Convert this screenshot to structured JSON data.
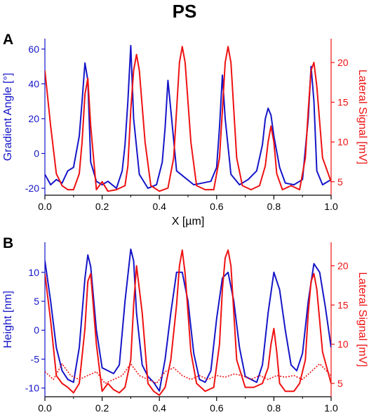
{
  "figure_title": "PS",
  "colors": {
    "blue": "#1515c8",
    "red": "#ee1111",
    "axis": "#000000"
  },
  "chart_data": [
    {
      "panel": "A",
      "type": "line",
      "xlabel": "X [µm]",
      "ylabel_left": "Gradient Angle [°]",
      "ylabel_right": "Lateral Signal [mV]",
      "xlim": [
        0,
        1
      ],
      "ylim_left": [
        -24,
        66
      ],
      "ylim_right": [
        3.3,
        23.0
      ],
      "x_ticks": [
        "0.0",
        "0.2",
        "0.4",
        "0.6",
        "0.8",
        "1.0"
      ],
      "y_ticks_left": [
        "-20",
        "0",
        "20",
        "40",
        "60"
      ],
      "y_ticks_right": [
        "5",
        "10",
        "15",
        "20"
      ],
      "grid": false,
      "series": [
        {
          "axis": "left",
          "color": "#1515c8",
          "x": [
            0,
            0.02,
            0.04,
            0.06,
            0.08,
            0.1,
            0.12,
            0.13,
            0.14,
            0.15,
            0.16,
            0.18,
            0.2,
            0.22,
            0.25,
            0.27,
            0.28,
            0.29,
            0.3,
            0.31,
            0.33,
            0.36,
            0.39,
            0.41,
            0.42,
            0.43,
            0.44,
            0.46,
            0.49,
            0.52,
            0.55,
            0.58,
            0.6,
            0.61,
            0.62,
            0.63,
            0.65,
            0.68,
            0.71,
            0.74,
            0.76,
            0.77,
            0.78,
            0.79,
            0.8,
            0.82,
            0.84,
            0.87,
            0.9,
            0.92,
            0.93,
            0.94,
            0.95,
            0.97,
            1.0
          ],
          "y": [
            -12,
            -18,
            -15,
            -17,
            -10,
            -8,
            10,
            30,
            52,
            42,
            -5,
            -16,
            -18,
            -16,
            -20,
            -10,
            5,
            30,
            62,
            20,
            -12,
            -20,
            -18,
            -5,
            15,
            42,
            25,
            -10,
            -14,
            -18,
            -17,
            -16,
            -8,
            15,
            45,
            20,
            -12,
            -18,
            -15,
            -10,
            5,
            20,
            26,
            22,
            10,
            -8,
            -17,
            -18,
            -15,
            20,
            50,
            30,
            -10,
            -18,
            -15
          ]
        },
        {
          "axis": "right",
          "color": "#ee1111",
          "x": [
            0,
            0.02,
            0.04,
            0.06,
            0.08,
            0.1,
            0.12,
            0.13,
            0.14,
            0.15,
            0.16,
            0.18,
            0.2,
            0.22,
            0.25,
            0.28,
            0.29,
            0.3,
            0.31,
            0.32,
            0.33,
            0.35,
            0.37,
            0.4,
            0.43,
            0.45,
            0.46,
            0.47,
            0.48,
            0.49,
            0.51,
            0.53,
            0.56,
            0.59,
            0.61,
            0.62,
            0.63,
            0.64,
            0.65,
            0.67,
            0.69,
            0.72,
            0.75,
            0.77,
            0.78,
            0.79,
            0.8,
            0.81,
            0.83,
            0.86,
            0.89,
            0.91,
            0.92,
            0.93,
            0.94,
            0.95,
            0.97,
            1.0
          ],
          "y": [
            19,
            12,
            6,
            4.5,
            4,
            4,
            6,
            10,
            16,
            18,
            12,
            4,
            5,
            3.8,
            4,
            4.5,
            7,
            14,
            19,
            21,
            19,
            10,
            4.5,
            3.8,
            4.2,
            8,
            14,
            20,
            22,
            20,
            10,
            4.5,
            4,
            4,
            8,
            14,
            20,
            22,
            20,
            8,
            4.5,
            4,
            4.5,
            7,
            10,
            12,
            10,
            6,
            4,
            4.5,
            4,
            8,
            14,
            19,
            20,
            17,
            8,
            5
          ]
        }
      ]
    },
    {
      "panel": "B",
      "type": "line",
      "xlabel": "X [µm]",
      "ylabel_left": "Height [nm]",
      "ylabel_right": "Lateral Signal [mV]",
      "xlim": [
        0,
        1
      ],
      "ylim_left": [
        -11.5,
        15.2
      ],
      "ylim_right": [
        3.3,
        23.0
      ],
      "x_ticks": [
        "0.0",
        "0.2",
        "0.4",
        "0.6",
        "0.8",
        "1.0"
      ],
      "y_ticks_left": [
        "-10",
        "-5",
        "0",
        "5",
        "10"
      ],
      "y_ticks_right": [
        "5",
        "10",
        "15",
        "20"
      ],
      "grid": false,
      "series": [
        {
          "axis": "left",
          "color": "#1515c8",
          "x": [
            0,
            0.02,
            0.04,
            0.06,
            0.08,
            0.1,
            0.12,
            0.14,
            0.15,
            0.16,
            0.18,
            0.2,
            0.22,
            0.24,
            0.26,
            0.28,
            0.3,
            0.31,
            0.32,
            0.34,
            0.36,
            0.38,
            0.4,
            0.42,
            0.44,
            0.46,
            0.48,
            0.5,
            0.52,
            0.54,
            0.56,
            0.58,
            0.6,
            0.62,
            0.64,
            0.66,
            0.68,
            0.7,
            0.72,
            0.74,
            0.76,
            0.78,
            0.8,
            0.82,
            0.84,
            0.86,
            0.88,
            0.9,
            0.92,
            0.94,
            0.96,
            0.98,
            1.0
          ],
          "y": [
            12,
            5,
            -3,
            -7,
            -8.5,
            -9,
            -3,
            9,
            13,
            11,
            0,
            -6.5,
            -7,
            -7.5,
            -6,
            5,
            14,
            12,
            3,
            -6,
            -8,
            -9,
            -10.5,
            -5,
            3,
            10,
            10,
            5,
            -4,
            -8.5,
            -9,
            -7,
            2,
            9,
            10,
            5,
            -3,
            -8,
            -8.5,
            -9,
            -6,
            3,
            10,
            7,
            0,
            -6,
            -7,
            -4,
            5,
            11.5,
            10,
            4,
            -3
          ]
        },
        {
          "axis": "right",
          "color": "#ee1111",
          "x": [
            0,
            0.02,
            0.04,
            0.06,
            0.08,
            0.1,
            0.12,
            0.14,
            0.15,
            0.16,
            0.18,
            0.2,
            0.22,
            0.24,
            0.26,
            0.28,
            0.3,
            0.31,
            0.32,
            0.34,
            0.36,
            0.38,
            0.4,
            0.42,
            0.44,
            0.46,
            0.47,
            0.48,
            0.49,
            0.51,
            0.53,
            0.56,
            0.59,
            0.61,
            0.62,
            0.63,
            0.64,
            0.65,
            0.67,
            0.7,
            0.73,
            0.76,
            0.78,
            0.79,
            0.8,
            0.81,
            0.82,
            0.84,
            0.87,
            0.89,
            0.91,
            0.92,
            0.93,
            0.94,
            0.95,
            0.97,
            1.0
          ],
          "y": [
            19,
            13,
            6,
            5,
            4.5,
            3.8,
            5,
            12,
            18,
            19,
            10,
            4,
            5,
            4.2,
            3.8,
            4.5,
            8,
            15,
            20,
            14,
            5,
            4,
            3.5,
            4.5,
            8,
            15,
            20,
            22,
            19,
            9,
            5,
            4,
            4.5,
            10,
            17,
            21,
            22,
            20,
            8,
            4.5,
            4.5,
            5,
            7,
            10,
            12,
            9,
            5,
            4,
            4,
            5,
            8,
            14,
            18,
            19,
            17,
            9,
            5
          ]
        },
        {
          "axis": "right",
          "color": "#ee1111",
          "style": "dotted",
          "x": [
            0,
            0.03,
            0.06,
            0.09,
            0.12,
            0.15,
            0.18,
            0.21,
            0.24,
            0.27,
            0.3,
            0.33,
            0.36,
            0.39,
            0.42,
            0.45,
            0.48,
            0.51,
            0.54,
            0.57,
            0.6,
            0.63,
            0.66,
            0.69,
            0.72,
            0.75,
            0.78,
            0.81,
            0.84,
            0.87,
            0.9,
            0.93,
            0.96,
            1.0
          ],
          "y": [
            6.5,
            5.5,
            7.5,
            6,
            5.5,
            6,
            6.5,
            5,
            5.5,
            6,
            7.5,
            6,
            5.5,
            5,
            6.5,
            7,
            6,
            5.5,
            6,
            5.5,
            6,
            5.8,
            6.2,
            6,
            5.5,
            6,
            5.5,
            6,
            5.8,
            6,
            5.5,
            6.5,
            7.5,
            6
          ]
        }
      ]
    }
  ]
}
